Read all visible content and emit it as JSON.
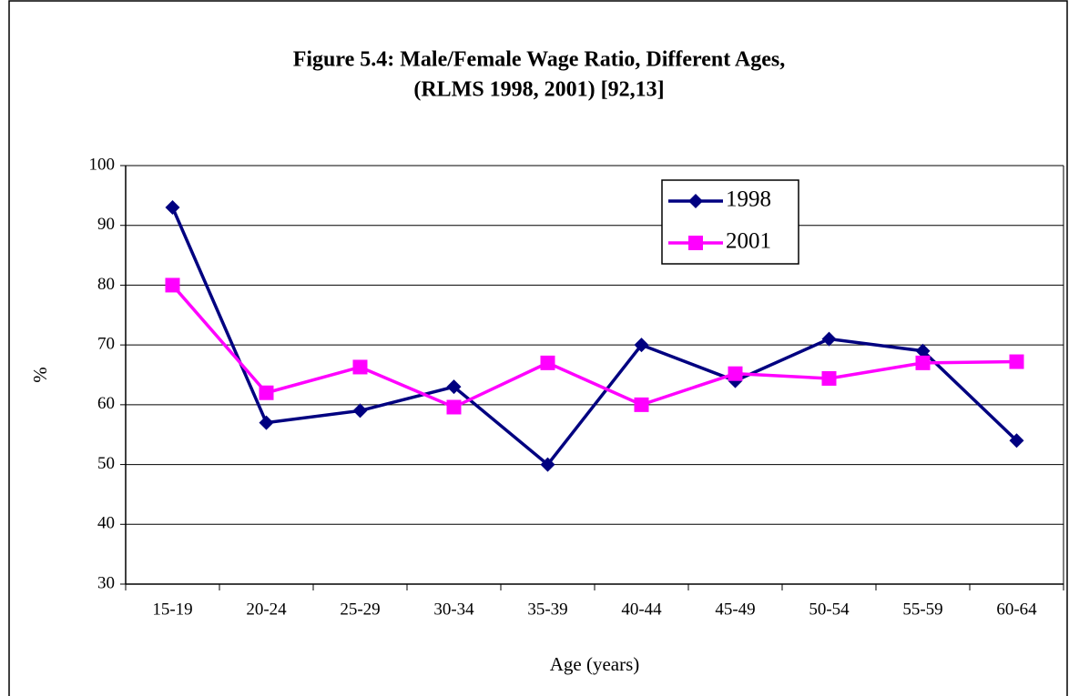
{
  "chart_data": {
    "type": "line",
    "title": [
      "Figure 5.4: Male/Female Wage Ratio, Different Ages,",
      "(RLMS 1998, 2001) [92,13]"
    ],
    "x_label": "Age (years)",
    "y_label": "%",
    "categories": [
      "15-19",
      "20-24",
      "25-29",
      "30-34",
      "35-39",
      "40-44",
      "45-49",
      "50-54",
      "55-59",
      "60-64"
    ],
    "series": [
      {
        "name": "1998",
        "color": "#000080",
        "marker": "diamond",
        "values": [
          93,
          57,
          59,
          63,
          50,
          70,
          64,
          71,
          69,
          54
        ]
      },
      {
        "name": "2001",
        "color": "#ff00ff",
        "marker": "square",
        "values": [
          80,
          62,
          66.3,
          59.6,
          67,
          60,
          65.2,
          64.4,
          67,
          67.2
        ]
      }
    ],
    "ylim": [
      30,
      100
    ],
    "yticks": [
      30,
      40,
      50,
      60,
      70,
      80,
      90,
      100
    ],
    "grid": true,
    "legend": "upper right"
  }
}
